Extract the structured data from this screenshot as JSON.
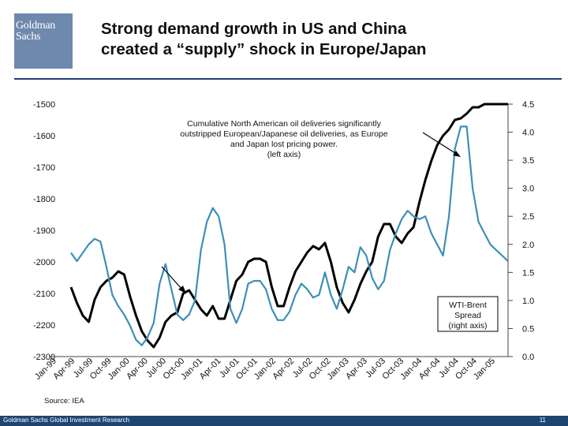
{
  "header": {
    "logo_text_line1": "Goldman",
    "logo_text_line2": "Sachs",
    "title_line1": "Strong demand growth in US and China",
    "title_line2": "created a “supply” shock in Europe/Japan"
  },
  "footer": {
    "source": "Source: IEA",
    "firm": "Goldman Sachs Global Investment Research",
    "page": "11"
  },
  "colors": {
    "brand": "#1e4570",
    "logo": "#6f89ad",
    "spread_line": "#3d8fb7",
    "deliveries_line": "#000000"
  },
  "chart_data": {
    "type": "line",
    "title": "",
    "x_tick_labels": [
      "Jan-99",
      "Apr-99",
      "Jul-99",
      "Oct-99",
      "Jan-00",
      "Apr-00",
      "Jul-00",
      "Oct-00",
      "Jan-01",
      "Apr-01",
      "Jul-01",
      "Oct-01",
      "Jan-02",
      "Apr-02",
      "Jul-02",
      "Oct-02",
      "Jan-03",
      "Apr-03",
      "Jul-03",
      "Oct-03",
      "Jan-04",
      "Apr-04",
      "Jul-04",
      "Oct-04",
      "Jan-05"
    ],
    "left_axis": {
      "label": "Cumulative North American oil deliveries (left axis)",
      "ylim": [
        -2300,
        -1500
      ],
      "ticks": [
        -1500,
        -1600,
        -1700,
        -1800,
        -1900,
        -2000,
        -2100,
        -2200,
        -2300
      ]
    },
    "right_axis": {
      "label": "WTI-Brent Spread (right axis)",
      "ylim": [
        0.0,
        4.5
      ],
      "ticks": [
        "4.5",
        "4.0",
        "3.5",
        "3.0",
        "2.5",
        "2.0",
        "1.5",
        "1.0",
        "0.5",
        "0.0"
      ]
    },
    "series": [
      {
        "name": "Cumulative North American oil deliveries",
        "axis": "left",
        "color": "#000000",
        "x": [
          0,
          1,
          2,
          3,
          4,
          5,
          6,
          7,
          8,
          9,
          10,
          11,
          12,
          13,
          14,
          15,
          16,
          17,
          18,
          19,
          20,
          21,
          22,
          23,
          24,
          25,
          26,
          27,
          28,
          29,
          30,
          31,
          32,
          33,
          34,
          35,
          36,
          37,
          38,
          39,
          40,
          41,
          42,
          43,
          44,
          45,
          46,
          47,
          48,
          49,
          50,
          51,
          52,
          53,
          54,
          55,
          56,
          57,
          58,
          59,
          60,
          61,
          62,
          63,
          64,
          65,
          66,
          67,
          68,
          69,
          70,
          71,
          72,
          73,
          74
        ],
        "values": [
          -2080,
          -2130,
          -2170,
          -2190,
          -2120,
          -2080,
          -2060,
          -2050,
          -2030,
          -2040,
          -2110,
          -2170,
          -2220,
          -2250,
          -2270,
          -2240,
          -2190,
          -2170,
          -2160,
          -2100,
          -2090,
          -2120,
          -2150,
          -2170,
          -2140,
          -2180,
          -2180,
          -2120,
          -2060,
          -2040,
          -2000,
          -1990,
          -1990,
          -2000,
          -2080,
          -2140,
          -2140,
          -2080,
          -2030,
          -2000,
          -1970,
          -1950,
          -1960,
          -1940,
          -2000,
          -2080,
          -2130,
          -2160,
          -2120,
          -2070,
          -2030,
          -2000,
          -1920,
          -1880,
          -1880,
          -1920,
          -1940,
          -1910,
          -1890,
          -1810,
          -1740,
          -1680,
          -1630,
          -1600,
          -1580,
          -1550,
          -1545,
          -1530,
          -1510,
          -1510,
          -1500,
          -1500,
          -1500,
          -1500,
          -1500
        ]
      },
      {
        "name": "WTI-Brent Spread",
        "axis": "right",
        "color": "#3d8fb7",
        "x": [
          0,
          1,
          2,
          3,
          4,
          5,
          6,
          7,
          8,
          9,
          10,
          11,
          12,
          13,
          14,
          15,
          16,
          17,
          18,
          19,
          20,
          21,
          22,
          23,
          24,
          25,
          26,
          27,
          28,
          29,
          30,
          31,
          32,
          33,
          34,
          35,
          36,
          37,
          38,
          39,
          40,
          41,
          42,
          43,
          44,
          45,
          46,
          47,
          48,
          49,
          50,
          51,
          52,
          53,
          54,
          55,
          56,
          57,
          58,
          59,
          60,
          61,
          62,
          63,
          64,
          65,
          66,
          67,
          68,
          69,
          70,
          71,
          72,
          73,
          74
        ],
        "values": [
          1.85,
          1.7,
          1.85,
          2.0,
          2.1,
          2.05,
          1.6,
          1.1,
          0.9,
          0.75,
          0.55,
          0.3,
          0.2,
          0.35,
          0.6,
          1.3,
          1.65,
          1.2,
          0.75,
          0.65,
          0.75,
          1.0,
          1.9,
          2.4,
          2.65,
          2.5,
          2.0,
          0.85,
          0.6,
          0.85,
          1.3,
          1.35,
          1.35,
          1.2,
          0.85,
          0.65,
          0.65,
          0.8,
          1.1,
          1.3,
          1.2,
          1.05,
          1.1,
          1.5,
          1.1,
          0.85,
          1.2,
          1.6,
          1.5,
          1.95,
          1.8,
          1.4,
          1.2,
          1.35,
          1.9,
          2.2,
          2.45,
          2.6,
          2.5,
          2.45,
          2.5,
          2.2,
          2.0,
          1.8,
          2.5,
          3.7,
          4.1,
          4.1,
          3.0,
          2.4,
          2.2,
          2.0,
          1.9,
          1.8,
          1.7
        ]
      }
    ],
    "annotations": [
      {
        "text_lines": [
          "Cumulative North American oil deliveries significantly",
          "outstripped European/Japanese oil deliveries, as Europe",
          "and Japan lost pricing power.",
          "(left axis)"
        ]
      },
      {
        "text_lines": [
          "WTI-Brent",
          "Spread",
          "(right axis)"
        ]
      }
    ]
  }
}
